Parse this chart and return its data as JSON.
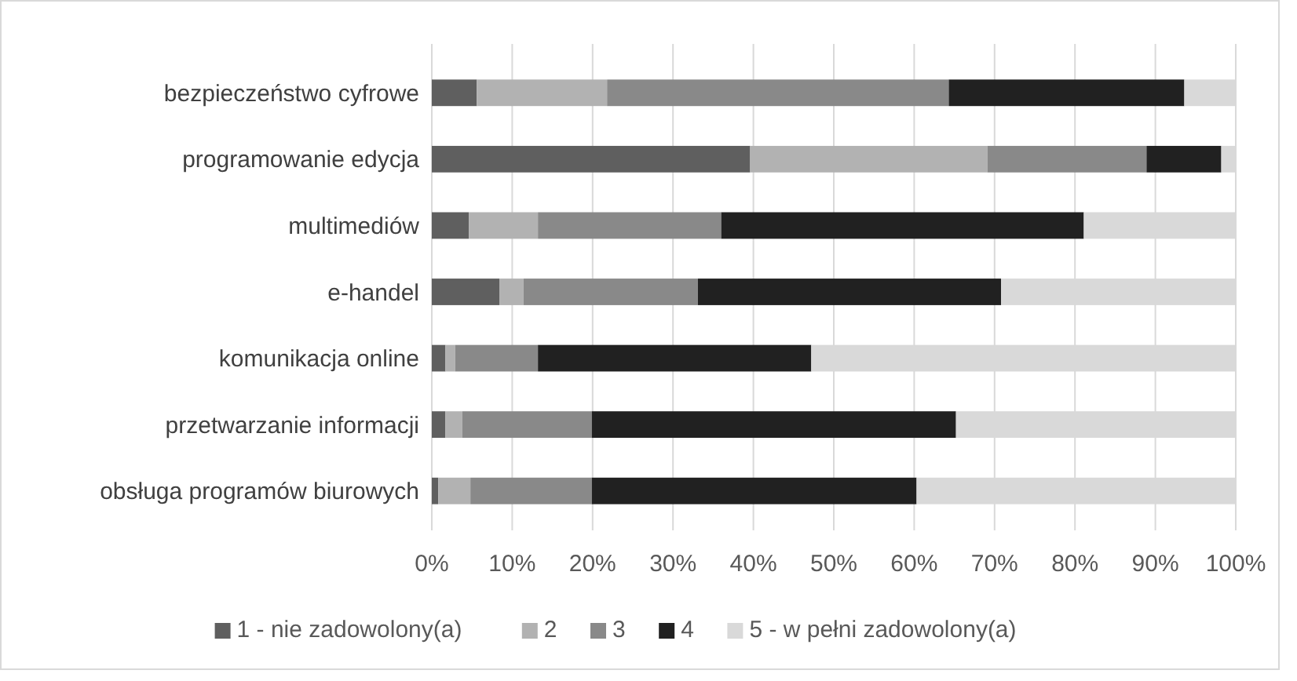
{
  "chart_data": {
    "type": "bar",
    "orientation": "horizontal",
    "stacked": true,
    "categories": [
      "bezpieczeństwo cyfrowe",
      "programowanie edycja",
      "multimediów",
      "e-handel",
      "komunikacja online",
      "przetwarzanie informacji",
      "obsługa programów biurowych"
    ],
    "series": [
      {
        "name": "1 - nie zadowolony(a)",
        "color": "#5f5f5f",
        "values": [
          5.6,
          39.6,
          4.6,
          8.4,
          1.7,
          1.7,
          0.8
        ]
      },
      {
        "name": "2",
        "color": "#b2b2b2",
        "values": [
          16.2,
          29.5,
          8.6,
          3.0,
          1.2,
          2.1,
          4.0
        ]
      },
      {
        "name": "3",
        "color": "#898989",
        "values": [
          42.5,
          19.8,
          22.8,
          21.7,
          10.3,
          16.1,
          15.1
        ]
      },
      {
        "name": "4",
        "color": "#212121",
        "values": [
          29.3,
          9.3,
          45.1,
          37.7,
          34.0,
          45.3,
          40.4
        ]
      },
      {
        "name": "5 - w pełni zadowolony(a)",
        "color": "#d9d9d9",
        "values": [
          6.4,
          1.8,
          18.9,
          29.2,
          52.8,
          34.8,
          39.7
        ]
      }
    ],
    "xlim": [
      0,
      100
    ],
    "xticks": [
      {
        "value": 0,
        "label": "0%"
      },
      {
        "value": 10,
        "label": "10%"
      },
      {
        "value": 20,
        "label": "20%"
      },
      {
        "value": 30,
        "label": "30%"
      },
      {
        "value": 40,
        "label": "40%"
      },
      {
        "value": 50,
        "label": "50%"
      },
      {
        "value": 60,
        "label": "60%"
      },
      {
        "value": 70,
        "label": "70%"
      },
      {
        "value": 80,
        "label": "80%"
      },
      {
        "value": 90,
        "label": "90%"
      },
      {
        "value": 100,
        "label": "100%"
      }
    ],
    "grid": "x",
    "legend": "bottom"
  }
}
